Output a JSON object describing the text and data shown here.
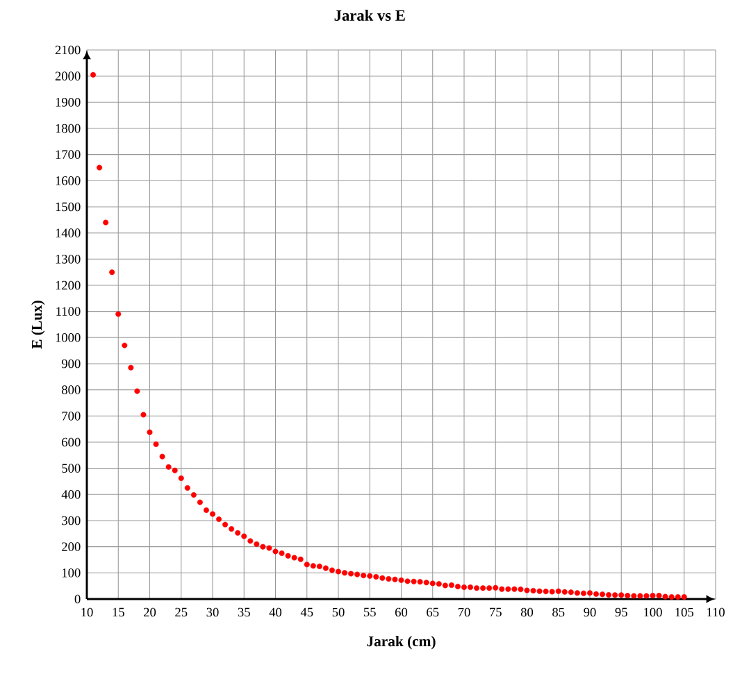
{
  "chart_data": {
    "type": "scatter",
    "title": "Jarak vs E",
    "xlabel": "Jarak (cm)",
    "ylabel": "E (Lux)",
    "x": [
      11,
      12,
      13,
      14,
      15,
      16,
      17,
      18,
      19,
      20,
      21,
      22,
      23,
      24,
      25,
      26,
      27,
      28,
      29,
      30,
      31,
      32,
      33,
      34,
      35,
      36,
      37,
      38,
      39,
      40,
      41,
      42,
      43,
      44,
      45,
      46,
      47,
      48,
      49,
      50,
      51,
      52,
      53,
      54,
      55,
      56,
      57,
      58,
      59,
      60,
      61,
      62,
      63,
      64,
      65,
      66,
      67,
      68,
      69,
      70,
      71,
      72,
      73,
      74,
      75,
      76,
      77,
      78,
      79,
      80,
      81,
      82,
      83,
      84,
      85,
      86,
      87,
      88,
      89,
      90,
      91,
      92,
      93,
      94,
      95,
      96,
      97,
      98,
      99,
      100,
      101,
      102,
      103,
      104,
      105
    ],
    "values": [
      2005,
      1650,
      1440,
      1250,
      1090,
      970,
      885,
      795,
      705,
      638,
      592,
      545,
      505,
      492,
      462,
      425,
      398,
      370,
      340,
      325,
      305,
      285,
      268,
      253,
      240,
      222,
      210,
      200,
      195,
      182,
      175,
      165,
      158,
      152,
      132,
      127,
      125,
      118,
      110,
      105,
      100,
      97,
      94,
      90,
      88,
      85,
      80,
      77,
      75,
      72,
      68,
      67,
      66,
      63,
      60,
      58,
      52,
      53,
      48,
      45,
      45,
      42,
      42,
      42,
      43,
      38,
      38,
      38,
      37,
      33,
      32,
      30,
      29,
      28,
      30,
      27,
      26,
      23,
      22,
      23,
      19,
      18,
      16,
      15,
      15,
      13,
      12,
      12,
      12,
      13,
      13,
      9,
      8,
      8,
      8
    ],
    "color": "#ff0000",
    "marker": "circle",
    "xlim": [
      10,
      110
    ],
    "ylim": [
      0,
      2100
    ],
    "xticks": [
      10,
      15,
      20,
      25,
      30,
      35,
      40,
      45,
      50,
      55,
      60,
      65,
      70,
      75,
      80,
      85,
      90,
      95,
      100,
      105,
      110
    ],
    "yticks": [
      0,
      100,
      200,
      300,
      400,
      500,
      600,
      700,
      800,
      900,
      1000,
      1100,
      1200,
      1300,
      1400,
      1500,
      1600,
      1700,
      1800,
      1900,
      2000,
      2100
    ],
    "grid": true
  }
}
